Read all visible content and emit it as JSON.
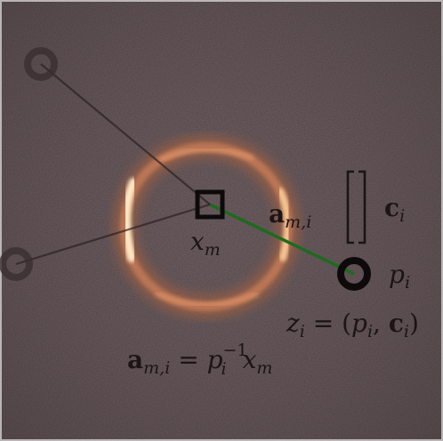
{
  "figure": {
    "background_color": "#4e4245",
    "ring_glow_color": "#ffd0a0",
    "accent_line_color": "#1e6a1e"
  },
  "labels": {
    "center_point": {
      "base": "x",
      "sub": "m"
    },
    "edge": {
      "base": "a",
      "sub": "m,i"
    },
    "capsule_bracket": {
      "open": "[",
      "close": "]"
    },
    "capsule_vector": {
      "base": "c",
      "sub": "i"
    },
    "pose": {
      "base": "p",
      "sub": "i"
    },
    "prediction": {
      "lhs_base": "z",
      "lhs_sub": "i",
      "equals": " = (",
      "p_base": "p",
      "p_sub": "i",
      "comma": ", ",
      "c_base": "c",
      "c_sub": "i",
      "close": ")"
    },
    "equation": {
      "lhs_base": "a",
      "lhs_sub": "m,i",
      "equals": " = ",
      "p_base": "p",
      "p_sup": "−1",
      "p_sub": "i",
      "x_base": "x",
      "x_sub": "m"
    }
  },
  "icons": {
    "center": "square-node-icon",
    "pose": "ring-node-icon"
  }
}
